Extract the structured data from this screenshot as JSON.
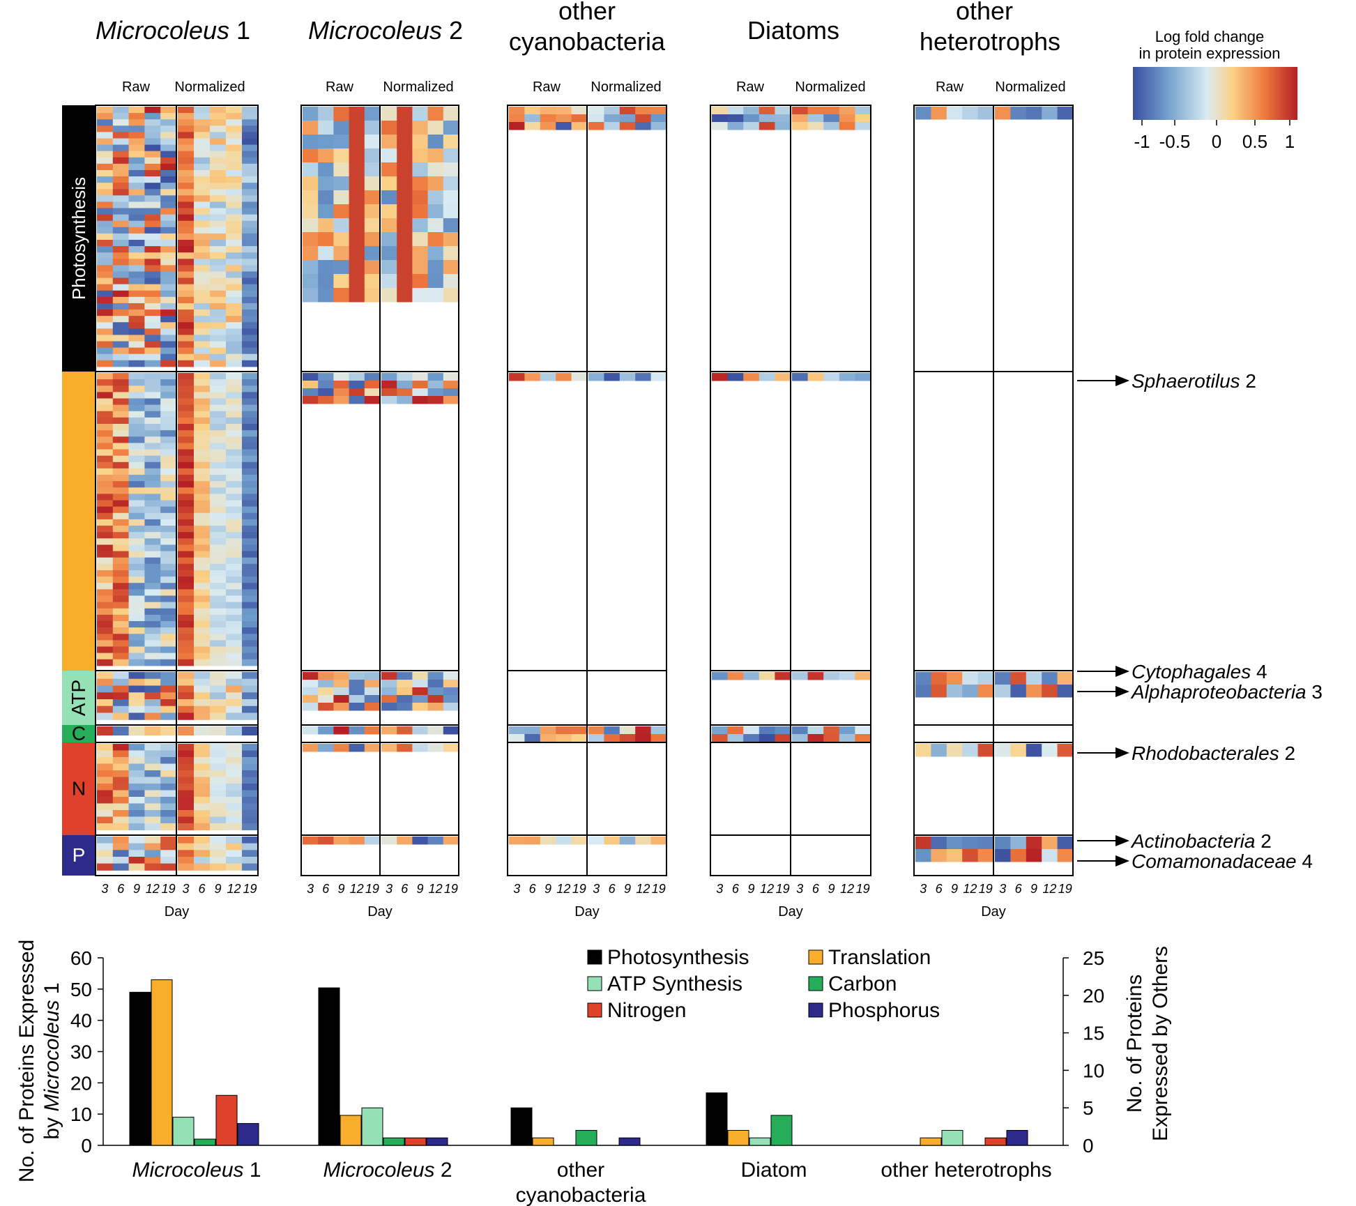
{
  "figure": {
    "heatmap_titles": [
      {
        "italic": "Microcoleus",
        "plain": " 1"
      },
      {
        "italic": "Microcoleus",
        "plain": " 2"
      },
      {
        "italic": "",
        "plain": "other",
        "line2": "cyanobacteria"
      },
      {
        "italic": "",
        "plain": "Diatoms"
      },
      {
        "italic": "",
        "plain": "other",
        "line2": "heterotrophs"
      }
    ],
    "raw_label": "Raw",
    "normalized_label": "Normalized",
    "day_label": "Day",
    "day_ticks": [
      "3",
      "6",
      "9",
      "12",
      "19"
    ],
    "categories": [
      "Photosynthesis",
      "",
      "ATP",
      "C",
      "N",
      "P"
    ],
    "legend": {
      "title_line1": "Log fold change",
      "title_line2": "in protein expression",
      "ticks": [
        "-1",
        "-0.5",
        "0",
        "0.5",
        "1"
      ],
      "colors": [
        "#3b4fa0",
        "#6e9ccb",
        "#d9ebf2",
        "#fbd38a",
        "#ee7a3e",
        "#b51f24"
      ]
    },
    "annotations": [
      {
        "italic": "Sphaerotilus",
        "plain": " 2"
      },
      {
        "italic": "Cytophagales",
        "plain": " 4"
      },
      {
        "italic": "Alphaproteobacteria",
        "plain": " 3"
      },
      {
        "italic": "Rhodobacterales",
        "plain": " 2"
      },
      {
        "italic": "Actinobacteria",
        "plain": " 2"
      },
      {
        "italic": "Comamonadaceae",
        "plain": " 4"
      }
    ]
  },
  "colors": {
    "Photosynthesis": "#000000",
    "Translation": "#f8ae2a",
    "ATP Synthesis": "#95e1b6",
    "Carbon": "#25ad5a",
    "Nitrogen": "#e0412a",
    "Phosphorus": "#2d2a8c"
  },
  "chart_data": [
    {
      "type": "heatmap",
      "title": "Microcoleus 1 / Microcoleus 2 / other cyanobacteria / Diatoms / other heterotrophs",
      "xlabel": "Day",
      "x": [
        "3",
        "6",
        "9",
        "12",
        "19"
      ],
      "column_groups": [
        "Raw",
        "Normalized"
      ],
      "row_groups": [
        "Photosynthesis",
        "Translation",
        "ATP",
        "C",
        "N",
        "P"
      ],
      "color_scale": {
        "label": "Log fold change in protein expression",
        "min": -1,
        "max": 1
      }
    },
    {
      "type": "bar",
      "categories": [
        {
          "italic": "Microcoleus",
          "plain": " 1"
        },
        {
          "italic": "Microcoleus",
          "plain": " 2"
        },
        {
          "italic": "",
          "plain": "other",
          "line2": "cyanobacteria"
        },
        {
          "italic": "",
          "plain": "Diatom"
        },
        {
          "italic": "",
          "plain": "other heterotrophs"
        }
      ],
      "series": [
        {
          "name": "Photosynthesis",
          "values": [
            49,
            21,
            5,
            7,
            0
          ]
        },
        {
          "name": "Translation",
          "values": [
            53,
            4,
            1,
            2,
            1
          ]
        },
        {
          "name": "ATP Synthesis",
          "values": [
            9,
            5,
            0,
            1,
            2
          ]
        },
        {
          "name": "Carbon",
          "values": [
            2,
            1,
            2,
            4,
            0
          ]
        },
        {
          "name": "Nitrogen",
          "values": [
            16,
            1,
            0,
            0,
            1
          ]
        },
        {
          "name": "Phosphorus",
          "values": [
            7,
            1,
            1,
            0,
            2
          ]
        }
      ],
      "left_axis": {
        "label_parts": [
          "No. of Proteins Expressed",
          "by ",
          "Microcoleus",
          " 1"
        ],
        "ylim": [
          0,
          60
        ],
        "ticks": [
          "0",
          "10",
          "20",
          "30",
          "40",
          "50",
          "60"
        ]
      },
      "right_axis": {
        "label_line1": "No. of Proteins",
        "label_line2": "Expressed by Others",
        "ylim": [
          0,
          25
        ],
        "ticks": [
          "0",
          "5",
          "10",
          "15",
          "20",
          "25"
        ]
      },
      "note": "Microcoleus 1 values use left axis; all other groups use right axis"
    }
  ]
}
